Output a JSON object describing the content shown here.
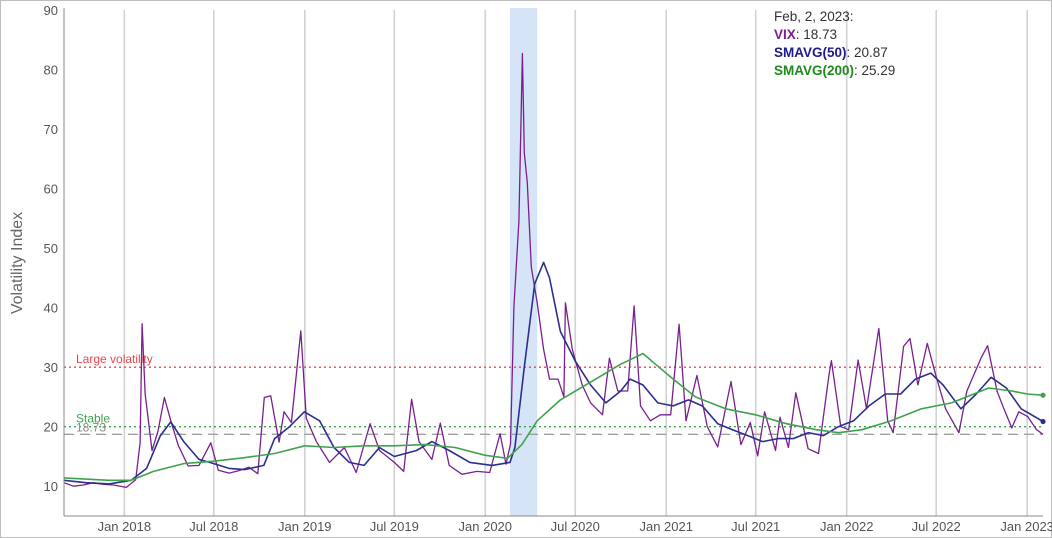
{
  "chart_data": {
    "type": "line",
    "ylabel": "Volatility Index",
    "xlabel": "",
    "ylim": [
      5,
      90
    ],
    "yticks": [
      10,
      20,
      30,
      40,
      50,
      60,
      70,
      80,
      90
    ],
    "x_range": [
      "2017-09-01",
      "2023-02-02"
    ],
    "x_tick_labels": [
      {
        "date": "2018-01-01",
        "label": "Jan 2018"
      },
      {
        "date": "2018-07-01",
        "label": "Jul 2018"
      },
      {
        "date": "2019-01-01",
        "label": "Jan 2019"
      },
      {
        "date": "2019-07-01",
        "label": "Jul 2019"
      },
      {
        "date": "2020-01-01",
        "label": "Jan 2020"
      },
      {
        "date": "2020-07-01",
        "label": "Jul 2020"
      },
      {
        "date": "2021-01-01",
        "label": "Jan 2021"
      },
      {
        "date": "2021-07-01",
        "label": "Jul 2021"
      },
      {
        "date": "2022-01-01",
        "label": "Jan 2022"
      },
      {
        "date": "2022-07-01",
        "label": "Jul 2022"
      },
      {
        "date": "2023-01-01",
        "label": "Jan 2023"
      }
    ],
    "vertical_grid": true,
    "shaded_region": {
      "from": "2020-02-20",
      "to": "2020-04-15",
      "color": "#d6e4f7"
    },
    "reference_lines": [
      {
        "label": "Large volatility",
        "y": 30,
        "color": "#e8474c",
        "style": "dotted"
      },
      {
        "label": "Stable",
        "y": 20,
        "color": "#3fa34d",
        "style": "dotted"
      },
      {
        "label": "18.73",
        "y": 18.73,
        "color": "#a0a0a0",
        "style": "dashed"
      }
    ],
    "series": [
      {
        "name": "VIX",
        "color": "#7a1f8f",
        "points": [
          [
            "2017-09-01",
            10.6
          ],
          [
            "2017-09-20",
            10.0
          ],
          [
            "2017-10-10",
            10.2
          ],
          [
            "2017-10-30",
            10.6
          ],
          [
            "2017-11-20",
            10.3
          ],
          [
            "2017-12-10",
            10.2
          ],
          [
            "2018-01-05",
            9.8
          ],
          [
            "2018-01-24",
            11.1
          ],
          [
            "2018-02-02",
            17.3
          ],
          [
            "2018-02-06",
            37.3
          ],
          [
            "2018-02-12",
            25.6
          ],
          [
            "2018-02-26",
            16.0
          ],
          [
            "2018-03-10",
            19.2
          ],
          [
            "2018-03-23",
            24.9
          ],
          [
            "2018-04-05",
            21.0
          ],
          [
            "2018-04-20",
            16.9
          ],
          [
            "2018-05-10",
            13.4
          ],
          [
            "2018-06-01",
            13.5
          ],
          [
            "2018-06-25",
            17.3
          ],
          [
            "2018-07-10",
            12.7
          ],
          [
            "2018-08-01",
            12.2
          ],
          [
            "2018-08-20",
            12.6
          ],
          [
            "2018-09-10",
            13.2
          ],
          [
            "2018-09-28",
            12.1
          ],
          [
            "2018-10-11",
            24.9
          ],
          [
            "2018-10-24",
            25.2
          ],
          [
            "2018-11-10",
            17.4
          ],
          [
            "2018-11-20",
            22.5
          ],
          [
            "2018-12-05",
            20.7
          ],
          [
            "2018-12-24",
            36.1
          ],
          [
            "2019-01-04",
            21.4
          ],
          [
            "2019-01-25",
            17.4
          ],
          [
            "2019-02-20",
            14.0
          ],
          [
            "2019-03-22",
            16.5
          ],
          [
            "2019-04-15",
            12.3
          ],
          [
            "2019-05-13",
            20.5
          ],
          [
            "2019-06-01",
            16.0
          ],
          [
            "2019-07-01",
            14.0
          ],
          [
            "2019-07-20",
            12.5
          ],
          [
            "2019-08-05",
            24.6
          ],
          [
            "2019-08-20",
            17.5
          ],
          [
            "2019-09-15",
            14.5
          ],
          [
            "2019-10-02",
            20.6
          ],
          [
            "2019-10-20",
            13.5
          ],
          [
            "2019-11-15",
            12.0
          ],
          [
            "2019-12-15",
            12.5
          ],
          [
            "2020-01-10",
            12.3
          ],
          [
            "2020-01-31",
            18.8
          ],
          [
            "2020-02-12",
            13.7
          ],
          [
            "2020-02-21",
            17.1
          ],
          [
            "2020-02-28",
            40.1
          ],
          [
            "2020-03-09",
            54.5
          ],
          [
            "2020-03-16",
            82.7
          ],
          [
            "2020-03-20",
            66.0
          ],
          [
            "2020-03-26",
            61.0
          ],
          [
            "2020-04-03",
            46.8
          ],
          [
            "2020-04-15",
            40.8
          ],
          [
            "2020-04-28",
            33.0
          ],
          [
            "2020-05-10",
            28.0
          ],
          [
            "2020-05-27",
            28.0
          ],
          [
            "2020-06-08",
            25.0
          ],
          [
            "2020-06-11",
            40.8
          ],
          [
            "2020-06-25",
            33.0
          ],
          [
            "2020-07-15",
            27.0
          ],
          [
            "2020-08-01",
            24.0
          ],
          [
            "2020-08-25",
            22.0
          ],
          [
            "2020-09-08",
            31.5
          ],
          [
            "2020-09-25",
            26.0
          ],
          [
            "2020-10-15",
            26.0
          ],
          [
            "2020-10-28",
            40.3
          ],
          [
            "2020-11-10",
            23.5
          ],
          [
            "2020-11-30",
            21.0
          ],
          [
            "2020-12-20",
            22.0
          ],
          [
            "2021-01-10",
            22.0
          ],
          [
            "2021-01-27",
            37.2
          ],
          [
            "2021-02-10",
            21.0
          ],
          [
            "2021-03-04",
            28.6
          ],
          [
            "2021-03-25",
            20.0
          ],
          [
            "2021-04-15",
            16.6
          ],
          [
            "2021-05-12",
            27.6
          ],
          [
            "2021-06-01",
            17.0
          ],
          [
            "2021-06-20",
            20.7
          ],
          [
            "2021-07-05",
            15.1
          ],
          [
            "2021-07-19",
            22.5
          ],
          [
            "2021-08-10",
            16.0
          ],
          [
            "2021-08-19",
            21.6
          ],
          [
            "2021-09-05",
            16.5
          ],
          [
            "2021-09-20",
            25.7
          ],
          [
            "2021-10-15",
            16.3
          ],
          [
            "2021-11-05",
            15.5
          ],
          [
            "2021-11-26",
            28.6
          ],
          [
            "2021-12-01",
            31.1
          ],
          [
            "2021-12-20",
            20.0
          ],
          [
            "2022-01-05",
            19.5
          ],
          [
            "2022-01-24",
            31.2
          ],
          [
            "2022-02-10",
            23.0
          ],
          [
            "2022-03-07",
            36.5
          ],
          [
            "2022-03-25",
            21.0
          ],
          [
            "2022-04-05",
            19.0
          ],
          [
            "2022-04-26",
            33.5
          ],
          [
            "2022-05-09",
            34.8
          ],
          [
            "2022-05-25",
            27.0
          ],
          [
            "2022-06-13",
            34.0
          ],
          [
            "2022-06-30",
            28.7
          ],
          [
            "2022-07-20",
            23.0
          ],
          [
            "2022-08-16",
            19.0
          ],
          [
            "2022-09-01",
            26.0
          ],
          [
            "2022-09-30",
            31.6
          ],
          [
            "2022-10-13",
            33.6
          ],
          [
            "2022-11-01",
            26.0
          ],
          [
            "2022-11-15",
            23.0
          ],
          [
            "2022-12-01",
            19.8
          ],
          [
            "2022-12-15",
            22.5
          ],
          [
            "2023-01-02",
            21.7
          ],
          [
            "2023-01-20",
            19.5
          ],
          [
            "2023-02-02",
            18.7
          ]
        ]
      },
      {
        "name": "SMAVG(50)",
        "color": "#2b2f8f",
        "points": [
          [
            "2017-09-01",
            11.0
          ],
          [
            "2017-10-15",
            10.6
          ],
          [
            "2017-12-01",
            10.4
          ],
          [
            "2018-01-15",
            11.0
          ],
          [
            "2018-02-15",
            13.0
          ],
          [
            "2018-03-15",
            18.5
          ],
          [
            "2018-04-05",
            20.8
          ],
          [
            "2018-05-01",
            17.5
          ],
          [
            "2018-06-01",
            14.5
          ],
          [
            "2018-07-01",
            13.8
          ],
          [
            "2018-08-01",
            13.0
          ],
          [
            "2018-09-01",
            12.8
          ],
          [
            "2018-10-10",
            13.5
          ],
          [
            "2018-11-01",
            18.0
          ],
          [
            "2018-12-01",
            20.0
          ],
          [
            "2018-12-31",
            22.5
          ],
          [
            "2019-01-31",
            21.0
          ],
          [
            "2019-03-01",
            16.5
          ],
          [
            "2019-04-01",
            14.0
          ],
          [
            "2019-05-01",
            13.5
          ],
          [
            "2019-06-01",
            16.5
          ],
          [
            "2019-07-01",
            15.0
          ],
          [
            "2019-08-15",
            16.0
          ],
          [
            "2019-09-15",
            17.5
          ],
          [
            "2019-10-20",
            16.0
          ],
          [
            "2019-12-01",
            14.0
          ],
          [
            "2020-01-15",
            13.5
          ],
          [
            "2020-02-20",
            14.0
          ],
          [
            "2020-03-01",
            16.5
          ],
          [
            "2020-03-20",
            30.0
          ],
          [
            "2020-04-10",
            44.0
          ],
          [
            "2020-04-28",
            47.6
          ],
          [
            "2020-05-10",
            45.0
          ],
          [
            "2020-06-01",
            36.0
          ],
          [
            "2020-07-01",
            31.0
          ],
          [
            "2020-08-01",
            27.0
          ],
          [
            "2020-09-01",
            24.0
          ],
          [
            "2020-10-01",
            26.0
          ],
          [
            "2020-10-20",
            28.0
          ],
          [
            "2020-11-15",
            27.0
          ],
          [
            "2020-12-15",
            24.0
          ],
          [
            "2021-01-15",
            23.5
          ],
          [
            "2021-02-15",
            24.5
          ],
          [
            "2021-03-15",
            23.5
          ],
          [
            "2021-04-15",
            20.5
          ],
          [
            "2021-05-15",
            19.5
          ],
          [
            "2021-06-15",
            18.5
          ],
          [
            "2021-07-15",
            17.5
          ],
          [
            "2021-08-15",
            18.0
          ],
          [
            "2021-09-15",
            18.0
          ],
          [
            "2021-10-15",
            19.0
          ],
          [
            "2021-11-15",
            18.5
          ],
          [
            "2021-12-15",
            20.0
          ],
          [
            "2022-01-15",
            21.0
          ],
          [
            "2022-02-15",
            23.5
          ],
          [
            "2022-03-20",
            25.5
          ],
          [
            "2022-04-20",
            25.5
          ],
          [
            "2022-05-20",
            28.0
          ],
          [
            "2022-06-20",
            29.0
          ],
          [
            "2022-07-15",
            27.0
          ],
          [
            "2022-08-20",
            23.0
          ],
          [
            "2022-09-20",
            25.5
          ],
          [
            "2022-10-20",
            28.3
          ],
          [
            "2022-11-20",
            26.5
          ],
          [
            "2022-12-20",
            23.0
          ],
          [
            "2023-02-02",
            20.87
          ]
        ]
      },
      {
        "name": "SMAVG(200)",
        "color": "#3fa34d",
        "points": [
          [
            "2017-09-01",
            11.4
          ],
          [
            "2017-12-01",
            11.0
          ],
          [
            "2018-01-15",
            11.0
          ],
          [
            "2018-03-01",
            12.5
          ],
          [
            "2018-05-01",
            13.8
          ],
          [
            "2018-07-01",
            14.2
          ],
          [
            "2018-09-01",
            14.8
          ],
          [
            "2018-11-01",
            15.5
          ],
          [
            "2019-01-01",
            16.8
          ],
          [
            "2019-03-01",
            16.5
          ],
          [
            "2019-05-01",
            16.8
          ],
          [
            "2019-07-01",
            16.8
          ],
          [
            "2019-09-01",
            17.0
          ],
          [
            "2019-11-01",
            16.5
          ],
          [
            "2020-01-01",
            15.2
          ],
          [
            "2020-02-15",
            14.7
          ],
          [
            "2020-03-15",
            17.0
          ],
          [
            "2020-04-15",
            21.0
          ],
          [
            "2020-06-01",
            24.5
          ],
          [
            "2020-08-01",
            27.5
          ],
          [
            "2020-10-01",
            30.5
          ],
          [
            "2020-11-15",
            32.3
          ],
          [
            "2020-12-10",
            30.5
          ],
          [
            "2021-01-15",
            28.0
          ],
          [
            "2021-03-01",
            25.0
          ],
          [
            "2021-05-01",
            23.0
          ],
          [
            "2021-07-01",
            22.0
          ],
          [
            "2021-09-01",
            20.5
          ],
          [
            "2021-11-01",
            19.5
          ],
          [
            "2021-12-15",
            19.0
          ],
          [
            "2022-02-01",
            19.5
          ],
          [
            "2022-04-01",
            21.0
          ],
          [
            "2022-06-01",
            23.0
          ],
          [
            "2022-08-01",
            24.0
          ],
          [
            "2022-09-15",
            25.5
          ],
          [
            "2022-10-15",
            26.5
          ],
          [
            "2022-12-01",
            26.0
          ],
          [
            "2023-01-01",
            25.5
          ],
          [
            "2023-02-02",
            25.29
          ]
        ]
      }
    ]
  },
  "tooltip": {
    "date": "Feb, 2, 2023:",
    "rows": [
      {
        "name": "VIX",
        "value": ": 18.73",
        "color": "#7a1f8f"
      },
      {
        "name": "SMAVG(50)",
        "value": ": 20.87",
        "color": "#1c1c8f"
      },
      {
        "name": "SMAVG(200)",
        "value": ": 25.29",
        "color": "#1f8a1f"
      }
    ]
  }
}
